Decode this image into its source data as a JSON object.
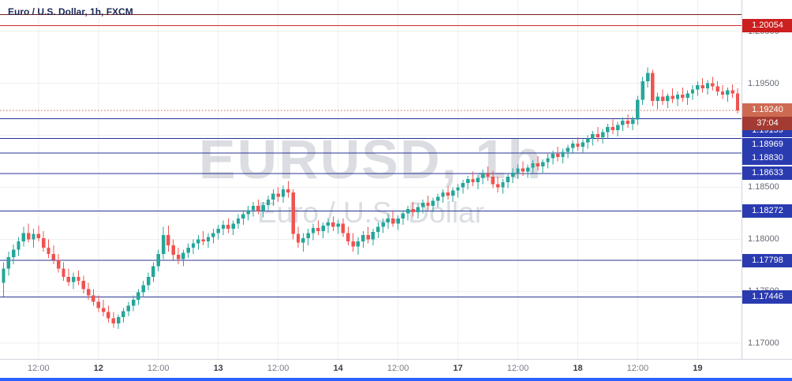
{
  "header": {
    "symbol_title": "Euro / U.S. Dollar, 1h, FXCM"
  },
  "watermark": {
    "line1": "EURUSD, 1h",
    "line2": "Euro / U.S. Dollar"
  },
  "colors": {
    "up": "#26a69a",
    "down": "#ef5350",
    "grid": "rgba(42,46,57,0.08)",
    "accent_bottom_bar": "#2962ff"
  },
  "chart_data": {
    "type": "candlestick",
    "symbol": "EURUSD",
    "interval": "1h",
    "exchange": "FXCM",
    "title": "Euro / U.S. Dollar, 1h, FXCM",
    "ylim": [
      1.1685,
      1.203
    ],
    "grid_prices": [
      1.17,
      1.175,
      1.18,
      1.185,
      1.19,
      1.195,
      1.2
    ],
    "price_ticks": [
      {
        "label": "1.20000",
        "price": 1.2
      },
      {
        "label": "1.19500",
        "price": 1.195
      },
      {
        "label": "1.18500",
        "price": 1.185
      },
      {
        "label": "1.18000",
        "price": 1.18
      },
      {
        "label": "1.17500",
        "price": 1.175
      },
      {
        "label": "1.17000",
        "price": 1.17
      }
    ],
    "levels": [
      {
        "price": 1.2016,
        "color": "#7a1d1d"
      },
      {
        "price": 1.20054,
        "color": "#cf2b2b",
        "badge": "1.20054",
        "badge_bg": "#cc1f1f"
      },
      {
        "price": 1.19159,
        "color": "#283593",
        "badge": "1.19159",
        "badge_bg": "#2a3bb0",
        "badge_dy": 15
      },
      {
        "price": 1.18969,
        "color": "#283593",
        "badge": "1.18969",
        "badge_bg": "#2a3bb0",
        "badge_dy": 8
      },
      {
        "price": 1.1883,
        "color": "#283593",
        "badge": "1.18830",
        "badge_bg": "#2a3bb0",
        "badge_dy": 7
      },
      {
        "price": 1.18633,
        "color": "#283593",
        "badge": "1.18633",
        "badge_bg": "#2a3bb0"
      },
      {
        "price": 1.18272,
        "color": "#283593",
        "badge": "1.18272",
        "badge_bg": "#2a3bb0"
      },
      {
        "price": 1.17798,
        "color": "#283593",
        "badge": "1.17798",
        "badge_bg": "#2a3bb0"
      },
      {
        "price": 1.17446,
        "color": "#283593",
        "badge": "1.17446",
        "badge_bg": "#2a3bb0"
      }
    ],
    "last_price": {
      "price": 1.1924,
      "label": "1.19240",
      "countdown": "37:04",
      "line_color": "#c4654e",
      "badge_bg": "#cd6a52",
      "countdown_bg": "#a33b32"
    },
    "time_labels": [
      {
        "t": "12:00",
        "i": 7
      },
      {
        "t": "12",
        "i": 19,
        "major": true
      },
      {
        "t": "12:00",
        "i": 31
      },
      {
        "t": "13",
        "i": 43,
        "major": true
      },
      {
        "t": "12:00",
        "i": 55
      },
      {
        "t": "14",
        "i": 67,
        "major": true
      },
      {
        "t": "12:00",
        "i": 79
      },
      {
        "t": "17",
        "i": 91,
        "major": true
      },
      {
        "t": "12:00",
        "i": 103
      },
      {
        "t": "18",
        "i": 115,
        "major": true
      },
      {
        "t": "12:00",
        "i": 127
      },
      {
        "t": "19",
        "i": 139,
        "major": true
      }
    ],
    "candles": [
      [
        1.1758,
        1.1778,
        1.1745,
        1.1772
      ],
      [
        1.1772,
        1.1788,
        1.1765,
        1.1783
      ],
      [
        1.1783,
        1.1795,
        1.1776,
        1.179
      ],
      [
        1.179,
        1.1802,
        1.1784,
        1.1798
      ],
      [
        1.1798,
        1.1812,
        1.1793,
        1.1806
      ],
      [
        1.1806,
        1.1815,
        1.1797,
        1.18
      ],
      [
        1.18,
        1.181,
        1.1792,
        1.1805
      ],
      [
        1.1805,
        1.1813,
        1.1798,
        1.1801
      ],
      [
        1.1801,
        1.1808,
        1.1788,
        1.1792
      ],
      [
        1.1792,
        1.18,
        1.1782,
        1.1786
      ],
      [
        1.1786,
        1.1794,
        1.1776,
        1.178
      ],
      [
        1.178,
        1.1786,
        1.1768,
        1.1772
      ],
      [
        1.1772,
        1.1778,
        1.176,
        1.1764
      ],
      [
        1.1764,
        1.1772,
        1.1755,
        1.1759
      ],
      [
        1.1759,
        1.1768,
        1.1752,
        1.1764
      ],
      [
        1.1764,
        1.177,
        1.1756,
        1.176
      ],
      [
        1.176,
        1.1765,
        1.1748,
        1.1752
      ],
      [
        1.1752,
        1.1758,
        1.1742,
        1.1746
      ],
      [
        1.1746,
        1.1752,
        1.1736,
        1.174
      ],
      [
        1.174,
        1.1746,
        1.173,
        1.1734
      ],
      [
        1.1734,
        1.1742,
        1.1726,
        1.173
      ],
      [
        1.173,
        1.1736,
        1.172,
        1.1724
      ],
      [
        1.1724,
        1.173,
        1.1715,
        1.1719
      ],
      [
        1.1719,
        1.1728,
        1.1714,
        1.1725
      ],
      [
        1.1725,
        1.1734,
        1.172,
        1.1731
      ],
      [
        1.1731,
        1.174,
        1.1726,
        1.1736
      ],
      [
        1.1736,
        1.1746,
        1.1731,
        1.1742
      ],
      [
        1.1742,
        1.1752,
        1.1737,
        1.1749
      ],
      [
        1.1749,
        1.176,
        1.1744,
        1.1756
      ],
      [
        1.1756,
        1.1768,
        1.1751,
        1.1764
      ],
      [
        1.1764,
        1.1778,
        1.1759,
        1.1774
      ],
      [
        1.1774,
        1.179,
        1.1769,
        1.1786
      ],
      [
        1.1786,
        1.1812,
        1.1781,
        1.1804
      ],
      [
        1.1804,
        1.1813,
        1.1788,
        1.1794
      ],
      [
        1.1794,
        1.18,
        1.178,
        1.1785
      ],
      [
        1.1785,
        1.1792,
        1.1776,
        1.1781
      ],
      [
        1.1781,
        1.179,
        1.1774,
        1.1787
      ],
      [
        1.1787,
        1.1796,
        1.1782,
        1.1792
      ],
      [
        1.1792,
        1.18,
        1.1786,
        1.1796
      ],
      [
        1.1796,
        1.1804,
        1.179,
        1.18
      ],
      [
        1.18,
        1.1808,
        1.1794,
        1.1798
      ],
      [
        1.1798,
        1.1806,
        1.1792,
        1.1802
      ],
      [
        1.1802,
        1.181,
        1.1796,
        1.1806
      ],
      [
        1.1806,
        1.1814,
        1.18,
        1.181
      ],
      [
        1.181,
        1.1818,
        1.1804,
        1.1814
      ],
      [
        1.1814,
        1.182,
        1.1806,
        1.181
      ],
      [
        1.181,
        1.1818,
        1.1804,
        1.1815
      ],
      [
        1.1815,
        1.1824,
        1.181,
        1.182
      ],
      [
        1.182,
        1.1828,
        1.1814,
        1.1824
      ],
      [
        1.1824,
        1.1832,
        1.1818,
        1.1828
      ],
      [
        1.1828,
        1.1836,
        1.1822,
        1.1832
      ],
      [
        1.1832,
        1.1838,
        1.1824,
        1.1827
      ],
      [
        1.1827,
        1.1836,
        1.1821,
        1.1833
      ],
      [
        1.1833,
        1.1842,
        1.1828,
        1.1838
      ],
      [
        1.1838,
        1.1848,
        1.1832,
        1.1844
      ],
      [
        1.1844,
        1.185,
        1.1836,
        1.1841
      ],
      [
        1.1841,
        1.1852,
        1.1835,
        1.1848
      ],
      [
        1.1848,
        1.1856,
        1.184,
        1.1845
      ],
      [
        1.1845,
        1.1848,
        1.18,
        1.1805
      ],
      [
        1.1805,
        1.1812,
        1.1792,
        1.1797
      ],
      [
        1.1797,
        1.1806,
        1.1788,
        1.1801
      ],
      [
        1.1801,
        1.181,
        1.1794,
        1.1806
      ],
      [
        1.1806,
        1.1815,
        1.1799,
        1.1811
      ],
      [
        1.1811,
        1.1818,
        1.1804,
        1.1808
      ],
      [
        1.1808,
        1.1816,
        1.1801,
        1.1813
      ],
      [
        1.1813,
        1.182,
        1.1806,
        1.1816
      ],
      [
        1.1816,
        1.1822,
        1.1808,
        1.1812
      ],
      [
        1.1812,
        1.1819,
        1.1805,
        1.1815
      ],
      [
        1.1815,
        1.182,
        1.1802,
        1.1806
      ],
      [
        1.1806,
        1.1812,
        1.1794,
        1.1798
      ],
      [
        1.1798,
        1.1806,
        1.1788,
        1.1793
      ],
      [
        1.1793,
        1.1802,
        1.1785,
        1.1798
      ],
      [
        1.1798,
        1.1808,
        1.1792,
        1.1804
      ],
      [
        1.1804,
        1.1812,
        1.1796,
        1.18
      ],
      [
        1.18,
        1.181,
        1.1794,
        1.1807
      ],
      [
        1.1807,
        1.1816,
        1.1801,
        1.1812
      ],
      [
        1.1812,
        1.182,
        1.1806,
        1.1816
      ],
      [
        1.1816,
        1.1824,
        1.181,
        1.182
      ],
      [
        1.182,
        1.1827,
        1.1812,
        1.1815
      ],
      [
        1.1815,
        1.1823,
        1.1809,
        1.182
      ],
      [
        1.182,
        1.1828,
        1.1814,
        1.1825
      ],
      [
        1.1825,
        1.1832,
        1.1818,
        1.1829
      ],
      [
        1.1829,
        1.1836,
        1.1822,
        1.1826
      ],
      [
        1.1826,
        1.1834,
        1.182,
        1.1831
      ],
      [
        1.1831,
        1.1838,
        1.1825,
        1.1835
      ],
      [
        1.1835,
        1.1842,
        1.1828,
        1.1832
      ],
      [
        1.1832,
        1.184,
        1.1826,
        1.1837
      ],
      [
        1.1837,
        1.1844,
        1.1831,
        1.1841
      ],
      [
        1.1841,
        1.1848,
        1.1835,
        1.1845
      ],
      [
        1.1845,
        1.1851,
        1.1838,
        1.1842
      ],
      [
        1.1842,
        1.185,
        1.1836,
        1.1847
      ],
      [
        1.1847,
        1.1853,
        1.184,
        1.185
      ],
      [
        1.185,
        1.1857,
        1.1844,
        1.1854
      ],
      [
        1.1854,
        1.1861,
        1.1848,
        1.1858
      ],
      [
        1.1858,
        1.1865,
        1.1851,
        1.1855
      ],
      [
        1.1855,
        1.1862,
        1.1848,
        1.1859
      ],
      [
        1.1859,
        1.1867,
        1.1853,
        1.1863
      ],
      [
        1.1863,
        1.187,
        1.1856,
        1.186
      ],
      [
        1.186,
        1.1866,
        1.1849,
        1.1853
      ],
      [
        1.1853,
        1.186,
        1.1845,
        1.185
      ],
      [
        1.185,
        1.1858,
        1.1844,
        1.1855
      ],
      [
        1.1855,
        1.1863,
        1.1849,
        1.186
      ],
      [
        1.186,
        1.1868,
        1.1854,
        1.1864
      ],
      [
        1.1864,
        1.1872,
        1.1858,
        1.1868
      ],
      [
        1.1868,
        1.1875,
        1.1861,
        1.1865
      ],
      [
        1.1865,
        1.1872,
        1.1859,
        1.1869
      ],
      [
        1.1869,
        1.1876,
        1.1863,
        1.1873
      ],
      [
        1.1873,
        1.188,
        1.1866,
        1.187
      ],
      [
        1.187,
        1.1877,
        1.1864,
        1.1874
      ],
      [
        1.1874,
        1.1882,
        1.1868,
        1.1878
      ],
      [
        1.1878,
        1.1885,
        1.1872,
        1.1882
      ],
      [
        1.1882,
        1.1889,
        1.1875,
        1.1879
      ],
      [
        1.1879,
        1.1887,
        1.1873,
        1.1884
      ],
      [
        1.1884,
        1.1891,
        1.1878,
        1.1888
      ],
      [
        1.1888,
        1.1895,
        1.1882,
        1.1892
      ],
      [
        1.1892,
        1.1898,
        1.1885,
        1.1889
      ],
      [
        1.1889,
        1.1896,
        1.1883,
        1.1893
      ],
      [
        1.1893,
        1.19,
        1.1887,
        1.1897
      ],
      [
        1.1897,
        1.1904,
        1.189,
        1.1901
      ],
      [
        1.1901,
        1.1908,
        1.1894,
        1.1898
      ],
      [
        1.1898,
        1.1906,
        1.1892,
        1.1903
      ],
      [
        1.1903,
        1.1911,
        1.1897,
        1.1908
      ],
      [
        1.1908,
        1.1915,
        1.1901,
        1.1905
      ],
      [
        1.1905,
        1.1913,
        1.1899,
        1.191
      ],
      [
        1.191,
        1.1917,
        1.1904,
        1.1914
      ],
      [
        1.1914,
        1.192,
        1.1907,
        1.1911
      ],
      [
        1.1911,
        1.1918,
        1.1905,
        1.1915
      ],
      [
        1.1915,
        1.1938,
        1.191,
        1.1934
      ],
      [
        1.1934,
        1.1956,
        1.1929,
        1.1952
      ],
      [
        1.1952,
        1.1965,
        1.1946,
        1.196
      ],
      [
        1.196,
        1.1963,
        1.1928,
        1.1933
      ],
      [
        1.1933,
        1.1941,
        1.1925,
        1.1937
      ],
      [
        1.1937,
        1.1944,
        1.1929,
        1.1933
      ],
      [
        1.1933,
        1.194,
        1.1926,
        1.1938
      ],
      [
        1.1938,
        1.1945,
        1.1931,
        1.1935
      ],
      [
        1.1935,
        1.1942,
        1.1928,
        1.1939
      ],
      [
        1.1939,
        1.1946,
        1.1932,
        1.1936
      ],
      [
        1.1936,
        1.1943,
        1.1929,
        1.194
      ],
      [
        1.194,
        1.1948,
        1.1934,
        1.1944
      ],
      [
        1.1944,
        1.1952,
        1.1938,
        1.1948
      ],
      [
        1.1948,
        1.1955,
        1.1941,
        1.1945
      ],
      [
        1.1945,
        1.1953,
        1.1939,
        1.195
      ],
      [
        1.195,
        1.1956,
        1.1943,
        1.1947
      ],
      [
        1.1947,
        1.1952,
        1.1938,
        1.1942
      ],
      [
        1.1942,
        1.1948,
        1.1935,
        1.1939
      ],
      [
        1.1939,
        1.1946,
        1.1932,
        1.1943
      ],
      [
        1.1943,
        1.1949,
        1.1936,
        1.194
      ],
      [
        1.194,
        1.1945,
        1.1921,
        1.1924
      ]
    ]
  }
}
